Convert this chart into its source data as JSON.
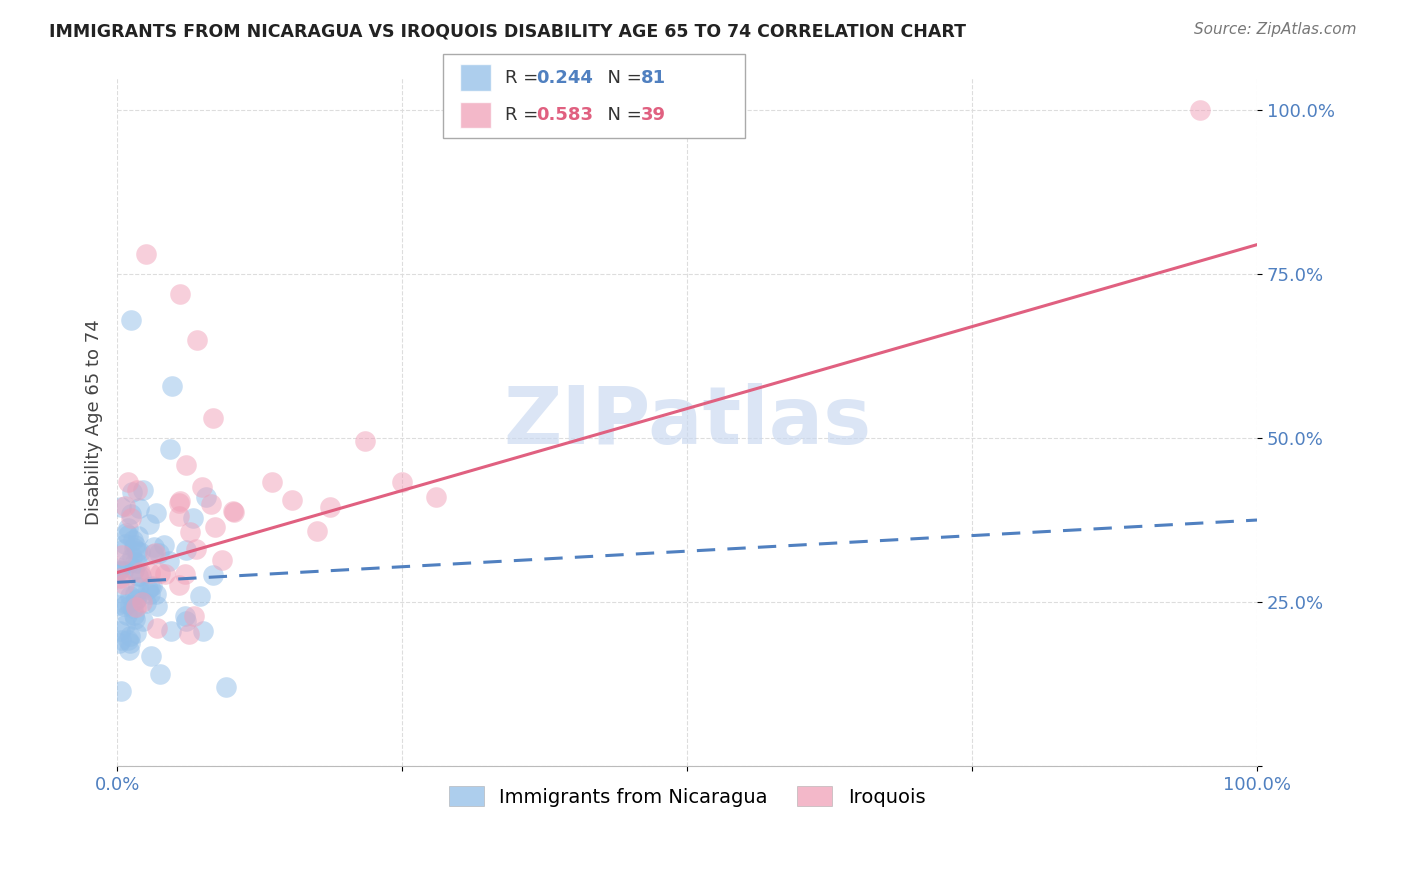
{
  "title": "IMMIGRANTS FROM NICARAGUA VS IROQUOIS DISABILITY AGE 65 TO 74 CORRELATION CHART",
  "source": "Source: ZipAtlas.com",
  "ylabel": "Disability Age 65 to 74",
  "xlim": [
    0.0,
    1.0
  ],
  "ylim": [
    0.0,
    1.05
  ],
  "xticks": [
    0.0,
    0.25,
    0.5,
    0.75,
    1.0
  ],
  "xtick_labels": [
    "0.0%",
    "",
    "",
    "",
    "100.0%"
  ],
  "yticks": [
    0.0,
    0.25,
    0.5,
    0.75,
    1.0
  ],
  "ytick_labels": [
    "",
    "25.0%",
    "50.0%",
    "75.0%",
    "100.0%"
  ],
  "legend1_R": "0.244",
  "legend1_N": "81",
  "legend2_R": "0.583",
  "legend2_N": "39",
  "blue_color": "#92BEE8",
  "pink_color": "#F0A0B8",
  "blue_line_color": "#5080C0",
  "pink_line_color": "#E06080",
  "tick_color": "#5080C0",
  "grid_color": "#DDDDDD",
  "watermark_color": "#C8D8F0",
  "title_color": "#222222",
  "source_color": "#777777"
}
